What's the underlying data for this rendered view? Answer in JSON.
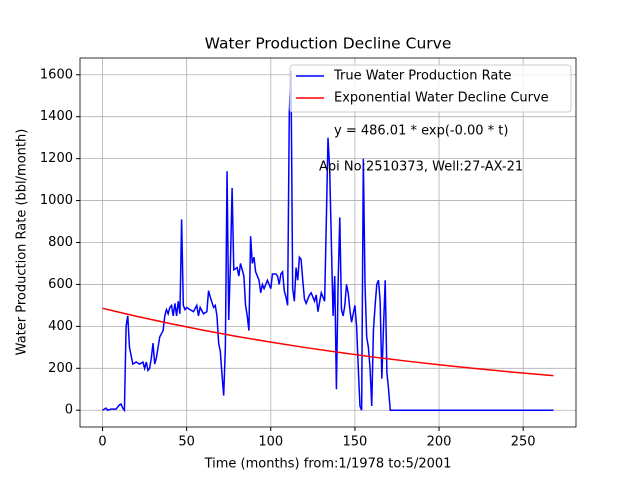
{
  "chart_data": {
    "type": "line",
    "title": "Water Production Decline Curve",
    "xlabel": "Time (months) from:1/1978 to:5/2001",
    "ylabel": "Water Production Rate (bbl/month)",
    "annotations": [
      "y = 486.01 * exp(-0.00 * t)",
      "Api No:2510373, Well:27-AX-21"
    ],
    "xlim": [
      -13.4,
      281.4
    ],
    "xticks": [
      0,
      50,
      100,
      150,
      200,
      250
    ],
    "ylim": [
      -80,
      1680
    ],
    "yticks": [
      0,
      200,
      400,
      600,
      800,
      1000,
      1200,
      1400,
      1600
    ],
    "grid": true,
    "legend": "upper right",
    "series": [
      {
        "name": "True Water Production Rate",
        "color": "#0000ff",
        "x": [
          0,
          2,
          3,
          5,
          8,
          10,
          11,
          12,
          13,
          14,
          15,
          16,
          18,
          20,
          22,
          24,
          25,
          26,
          27,
          28,
          29,
          30,
          31,
          32,
          34,
          36,
          37,
          38,
          39,
          40,
          41,
          42,
          43,
          44,
          45,
          46,
          47,
          48,
          49,
          50,
          52,
          54,
          56,
          57,
          58,
          60,
          62,
          63,
          64,
          66,
          67,
          68,
          69,
          70,
          71,
          72,
          73,
          74,
          75,
          76,
          77,
          78,
          80,
          81,
          82,
          84,
          85,
          86,
          87,
          88,
          89,
          90,
          91,
          93,
          94,
          95,
          96,
          98,
          100,
          101,
          103,
          104,
          105,
          106,
          107,
          108,
          109,
          110,
          111,
          112,
          113,
          114,
          115,
          116,
          117,
          118,
          119,
          120,
          121,
          123,
          124,
          126,
          127,
          128,
          130,
          132,
          133,
          134,
          135,
          136,
          137,
          138,
          139,
          140,
          141,
          142,
          143,
          144,
          145,
          146,
          147,
          148,
          149,
          150,
          151,
          152,
          153,
          154,
          155,
          156,
          157,
          158,
          159,
          160,
          161,
          162,
          163,
          164,
          165,
          166,
          167,
          168,
          169,
          170,
          171,
          268
        ],
        "values": [
          0,
          10,
          0,
          5,
          5,
          25,
          30,
          10,
          0,
          400,
          450,
          300,
          220,
          230,
          220,
          230,
          200,
          230,
          190,
          200,
          250,
          320,
          220,
          250,
          350,
          380,
          450,
          480,
          460,
          490,
          500,
          450,
          510,
          450,
          520,
          460,
          910,
          500,
          480,
          490,
          480,
          470,
          500,
          450,
          490,
          460,
          470,
          570,
          540,
          490,
          500,
          450,
          320,
          280,
          170,
          70,
          300,
          1140,
          430,
          700,
          1060,
          670,
          680,
          640,
          700,
          640,
          500,
          450,
          380,
          830,
          700,
          730,
          660,
          620,
          560,
          600,
          580,
          620,
          580,
          650,
          650,
          640,
          600,
          650,
          660,
          570,
          540,
          500,
          1420,
          1620,
          580,
          520,
          680,
          620,
          730,
          720,
          620,
          530,
          510,
          550,
          560,
          520,
          550,
          470,
          560,
          520,
          900,
          1300,
          1150,
          800,
          450,
          640,
          100,
          600,
          920,
          480,
          450,
          500,
          600,
          560,
          480,
          420,
          460,
          500,
          400,
          200,
          20,
          0,
          1200,
          600,
          350,
          300,
          200,
          20,
          380,
          500,
          600,
          620,
          520,
          150,
          400,
          620,
          180,
          100,
          0,
          0
        ]
      },
      {
        "name": "Exponential Water Decline Curve",
        "color": "#ff0000",
        "x": [
          0,
          20,
          40,
          60,
          80,
          100,
          120,
          140,
          160,
          180,
          200,
          220,
          240,
          260,
          268
        ],
        "values": [
          486.0,
          448.3,
          413.6,
          381.5,
          351.9,
          324.6,
          299.5,
          276.3,
          254.8,
          235.1,
          216.9,
          200.1,
          184.5,
          170.2,
          164.9
        ]
      }
    ]
  }
}
